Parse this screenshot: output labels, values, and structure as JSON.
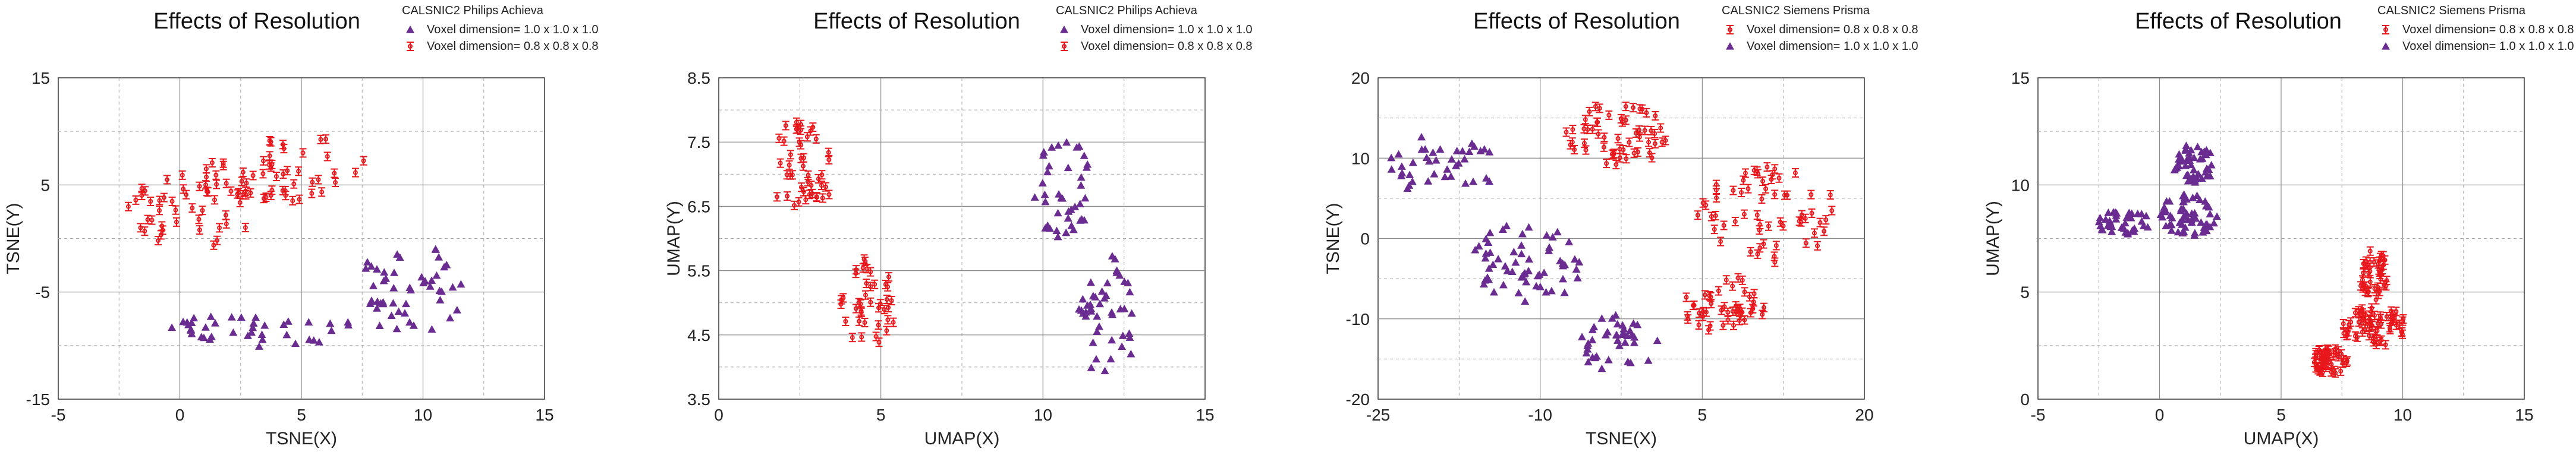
{
  "colors": {
    "purple": "#6a2c91",
    "red": "#e8171b",
    "grid_major": "#8a8a8a",
    "grid_minor": "#a8a8a8",
    "axis": "#333333"
  },
  "chart_data": [
    {
      "type": "scatter",
      "title": "Effects of Resolution",
      "xlabel": "TSNE(X)",
      "ylabel": "TSNE(Y)",
      "xlim": [
        -5,
        15
      ],
      "ylim": [
        -15,
        15
      ],
      "xticks": [
        -5,
        0,
        5,
        10,
        15
      ],
      "yticks": [
        -15,
        -5,
        5,
        15
      ],
      "legend_title": "CALSNIC2 Philips Achieva",
      "legend": [
        {
          "name": "Voxel dimension= 1.0 x 1.0 x 1.0",
          "marker": "triangle",
          "color": "#6a2c91"
        },
        {
          "name": "Voxel dimension= 0.8 x 0.8 x 0.8",
          "marker": "errbar",
          "color": "#e8171b"
        }
      ],
      "series": [
        {
          "name": "Voxel dimension= 1.0 x 1.0 x 1.0",
          "marker": "triangle",
          "color": "#6a2c91",
          "cluster": {
            "seed": 11,
            "count": 90,
            "shapes": [
              {
                "cx": 3.5,
                "cy": -8.5,
                "rx": 4.2,
                "ry": 1.6,
                "n": 40
              },
              {
                "cx": 9.5,
                "cy": -4.5,
                "rx": 2.2,
                "ry": 4.5,
                "n": 50
              }
            ]
          }
        },
        {
          "name": "Voxel dimension= 0.8 x 0.8 x 0.8",
          "marker": "errbar",
          "color": "#e8171b",
          "cluster": {
            "seed": 21,
            "count": 95,
            "shapes": [
              {
                "cx": 0.5,
                "cy": 2.5,
                "rx": 2.8,
                "ry": 3.5,
                "n": 45
              },
              {
                "cx": 4.5,
                "cy": 6.5,
                "rx": 3.5,
                "ry": 3.2,
                "n": 50
              }
            ]
          }
        }
      ]
    },
    {
      "type": "scatter",
      "title": "Effects of Resolution",
      "xlabel": "UMAP(X)",
      "ylabel": "UMAP(Y)",
      "xlim": [
        0,
        15
      ],
      "ylim": [
        3.5,
        8.5
      ],
      "xticks": [
        0,
        5,
        10,
        15
      ],
      "yticks": [
        3.5,
        4.5,
        5.5,
        6.5,
        7.5,
        8.5
      ],
      "legend_title": "CALSNIC2 Philips Achieva",
      "legend": [
        {
          "name": "Voxel dimension= 1.0 x 1.0 x 1.0",
          "marker": "triangle",
          "color": "#6a2c91"
        },
        {
          "name": "Voxel dimension= 0.8 x 0.8 x 0.8",
          "marker": "errbar",
          "color": "#e8171b"
        }
      ],
      "series": [
        {
          "name": "Voxel dimension= 1.0 x 1.0 x 1.0",
          "marker": "triangle",
          "color": "#6a2c91",
          "cluster": {
            "seed": 31,
            "count": 85,
            "shapes": [
              {
                "cx": 10.6,
                "cy": 6.8,
                "rx": 0.9,
                "ry": 0.8,
                "n": 40
              },
              {
                "cx": 12.0,
                "cy": 4.8,
                "rx": 0.9,
                "ry": 1.0,
                "n": 45
              }
            ]
          }
        },
        {
          "name": "Voxel dimension= 0.8 x 0.8 x 0.8",
          "marker": "errbar",
          "color": "#e8171b",
          "cluster": {
            "seed": 41,
            "count": 85,
            "shapes": [
              {
                "cx": 2.6,
                "cy": 7.1,
                "rx": 1.0,
                "ry": 0.8,
                "n": 45
              },
              {
                "cx": 4.6,
                "cy": 5.0,
                "rx": 0.9,
                "ry": 0.7,
                "n": 40
              }
            ]
          }
        }
      ]
    },
    {
      "type": "scatter",
      "title": "Effects of Resolution",
      "xlabel": "TSNE(X)",
      "ylabel": "TSNE(Y)",
      "xlim": [
        -25,
        20
      ],
      "ylim": [
        -20,
        20
      ],
      "xticks": [
        -25,
        -10,
        5,
        20
      ],
      "yticks": [
        -20,
        -10,
        0,
        10,
        20
      ],
      "legend_title": "CALSNIC2 Siemens Prisma",
      "legend": [
        {
          "name": "Voxel dimension= 0.8 x 0.8 x 0.8",
          "marker": "errbar",
          "color": "#e8171b"
        },
        {
          "name": "Voxel dimension= 1.0 x 1.0 x 1.0",
          "marker": "triangle",
          "color": "#6a2c91"
        }
      ],
      "series": [
        {
          "name": "Voxel dimension= 1.0 x 1.0 x 1.0",
          "marker": "triangle",
          "color": "#6a2c91",
          "cluster": {
            "seed": 51,
            "count": 140,
            "shapes": [
              {
                "cx": -19.0,
                "cy": 9.0,
                "rx": 5.0,
                "ry": 4.0,
                "n": 40
              },
              {
                "cx": -11.0,
                "cy": -3.0,
                "rx": 5.5,
                "ry": 5.0,
                "n": 60
              },
              {
                "cx": -3.0,
                "cy": -13.0,
                "rx": 4.0,
                "ry": 3.5,
                "n": 40
              }
            ]
          }
        },
        {
          "name": "Voxel dimension= 0.8 x 0.8 x 0.8",
          "marker": "errbar",
          "color": "#e8171b",
          "cluster": {
            "seed": 61,
            "count": 160,
            "shapes": [
              {
                "cx": -3.0,
                "cy": 13.0,
                "rx": 5.0,
                "ry": 4.0,
                "n": 55
              },
              {
                "cx": 11.0,
                "cy": 3.0,
                "rx": 6.5,
                "ry": 6.0,
                "n": 60
              },
              {
                "cx": 7.0,
                "cy": -8.0,
                "rx": 4.0,
                "ry": 4.0,
                "n": 45
              }
            ]
          }
        }
      ]
    },
    {
      "type": "scatter",
      "title": "Effects of Resolution",
      "xlabel": "UMAP(X)",
      "ylabel": "UMAP(Y)",
      "xlim": [
        -5,
        15
      ],
      "ylim": [
        0,
        15
      ],
      "xticks": [
        -5,
        0,
        5,
        10,
        15
      ],
      "yticks": [
        0,
        5,
        10,
        15
      ],
      "legend_title": "CALSNIC2 Siemens Prisma",
      "legend": [
        {
          "name": "Voxel dimension= 0.8 x 0.8 x 0.8",
          "marker": "errbar",
          "color": "#e8171b"
        },
        {
          "name": "Voxel dimension= 1.0 x 1.0 x 1.0",
          "marker": "triangle",
          "color": "#6a2c91"
        }
      ],
      "series": [
        {
          "name": "Voxel dimension= 1.0 x 1.0 x 1.0",
          "marker": "triangle",
          "color": "#6a2c91",
          "cluster": {
            "seed": 71,
            "count": 150,
            "shapes": [
              {
                "cx": -1.5,
                "cy": 8.2,
                "rx": 1.3,
                "ry": 0.6,
                "n": 40
              },
              {
                "cx": 1.2,
                "cy": 8.6,
                "rx": 1.2,
                "ry": 1.0,
                "n": 60
              },
              {
                "cx": 1.4,
                "cy": 11.0,
                "rx": 0.9,
                "ry": 0.9,
                "n": 50
              }
            ]
          }
        },
        {
          "name": "Voxel dimension= 0.8 x 0.8 x 0.8",
          "marker": "errbar",
          "color": "#e8171b",
          "cluster": {
            "seed": 81,
            "count": 150,
            "shapes": [
              {
                "cx": 8.8,
                "cy": 5.8,
                "rx": 0.6,
                "ry": 1.2,
                "n": 40
              },
              {
                "cx": 8.8,
                "cy": 3.4,
                "rx": 1.3,
                "ry": 1.0,
                "n": 60
              },
              {
                "cx": 7.0,
                "cy": 1.8,
                "rx": 0.8,
                "ry": 0.6,
                "n": 50
              }
            ]
          }
        }
      ]
    }
  ]
}
